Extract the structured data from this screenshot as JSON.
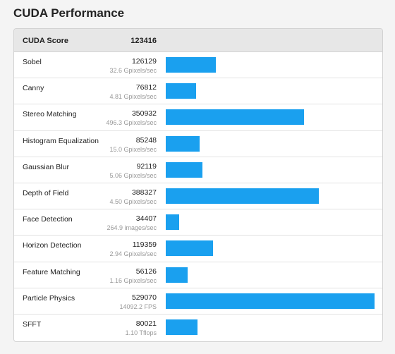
{
  "title": "CUDA Performance",
  "header": {
    "label": "CUDA Score",
    "score": "123416"
  },
  "accent_color": "#1aa0ef",
  "max_score": 529070,
  "rows": [
    {
      "name": "Sobel",
      "score": "126129",
      "value": 126129,
      "detail": "32.6 Gpixels/sec"
    },
    {
      "name": "Canny",
      "score": "76812",
      "value": 76812,
      "detail": "4.81 Gpixels/sec"
    },
    {
      "name": "Stereo Matching",
      "score": "350932",
      "value": 350932,
      "detail": "496.3 Gpixels/sec"
    },
    {
      "name": "Histogram Equalization",
      "score": "85248",
      "value": 85248,
      "detail": "15.0 Gpixels/sec"
    },
    {
      "name": "Gaussian Blur",
      "score": "92119",
      "value": 92119,
      "detail": "5.06 Gpixels/sec"
    },
    {
      "name": "Depth of Field",
      "score": "388327",
      "value": 388327,
      "detail": "4.50 Gpixels/sec"
    },
    {
      "name": "Face Detection",
      "score": "34407",
      "value": 34407,
      "detail": "264.9 images/sec"
    },
    {
      "name": "Horizon Detection",
      "score": "119359",
      "value": 119359,
      "detail": "2.94 Gpixels/sec"
    },
    {
      "name": "Feature Matching",
      "score": "56126",
      "value": 56126,
      "detail": "1.16 Gpixels/sec"
    },
    {
      "name": "Particle Physics",
      "score": "529070",
      "value": 529070,
      "detail": "14092.2 FPS"
    },
    {
      "name": "SFFT",
      "score": "80021",
      "value": 80021,
      "detail": "1.10 Tflops"
    }
  ]
}
